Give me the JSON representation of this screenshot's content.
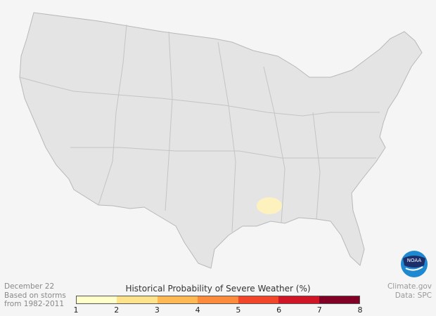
{
  "date": "December 22",
  "basis_line1": "Based on storms",
  "basis_line2": "from 1982-2011",
  "legend": {
    "title": "Historical Probability of Severe Weather (%)",
    "ticks": [
      "1",
      "2",
      "3",
      "4",
      "5",
      "6",
      "7",
      "8"
    ],
    "colors": [
      "#ffffcc",
      "#ffe38c",
      "#feb954",
      "#fd8b3c",
      "#f3452a",
      "#d01626",
      "#800026"
    ]
  },
  "credit": "Climate.gov",
  "source": "Data: SPC",
  "logo": "NOAA",
  "colors": {
    "land": "#e4e4e4",
    "border": "#b8b8b8",
    "background": "#f5f5f5",
    "highlight": "#fdf2bd"
  },
  "highlight_region": "Mississippi / Louisiana, probability range 1-2%"
}
